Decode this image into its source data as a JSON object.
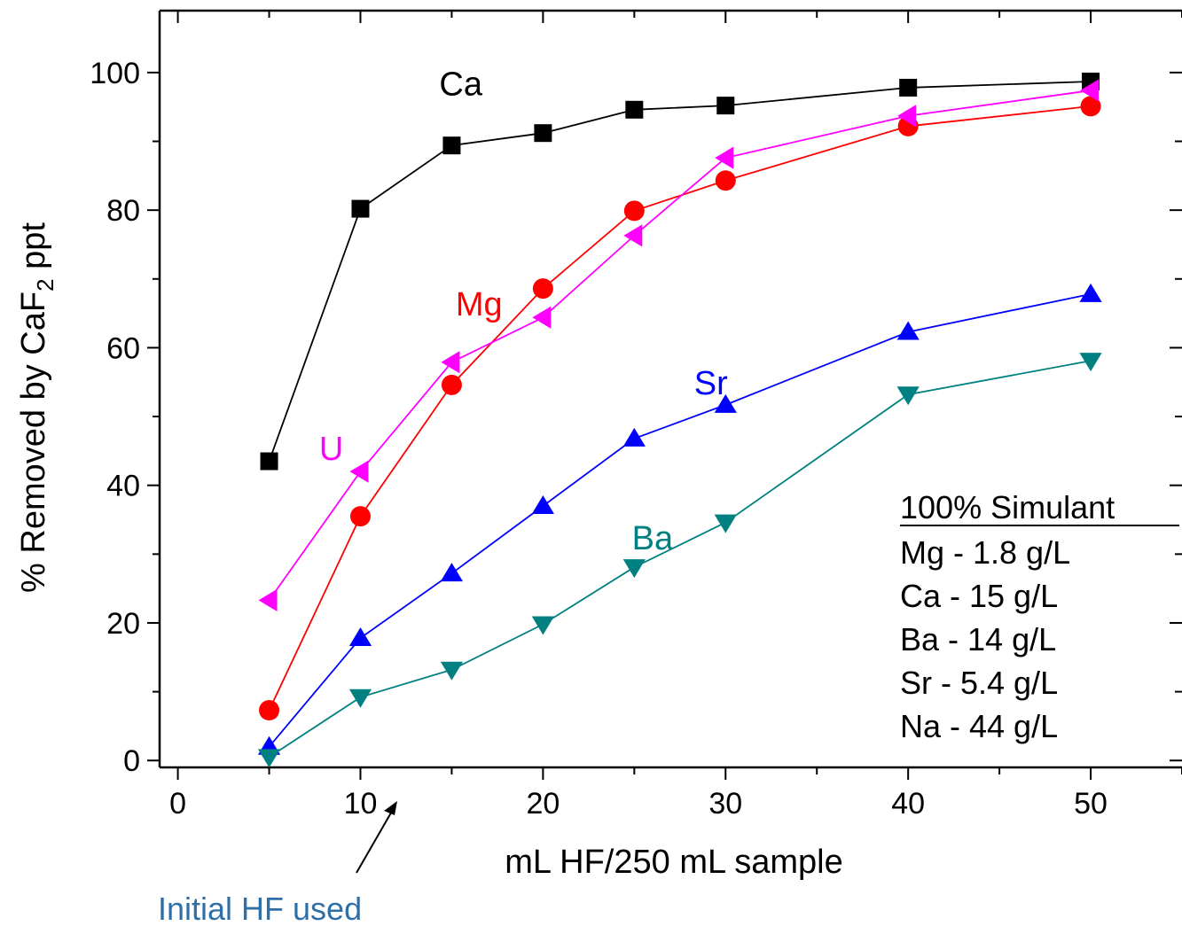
{
  "chart_data": {
    "type": "line",
    "ylabel_main": "% Removed by CaF",
    "ylabel_sub": "2",
    "ylabel_tail": " ppt",
    "xlabel": "mL HF/250 mL sample",
    "xlim": [
      -1,
      55
    ],
    "ylim": [
      -1,
      109
    ],
    "x_ticks": [
      0,
      10,
      20,
      30,
      40,
      50
    ],
    "y_ticks": [
      0,
      20,
      40,
      60,
      80,
      100
    ],
    "series": [
      {
        "label": "Ca",
        "color": "#000000",
        "marker": "square",
        "x": [
          5,
          10,
          15,
          20,
          25,
          30,
          40,
          50
        ],
        "y": [
          43.5,
          80.2,
          89.4,
          91.2,
          94.6,
          95.2,
          97.8,
          98.7
        ],
        "label_pos": [
          15.5,
          98.5
        ]
      },
      {
        "label": "Mg",
        "color": "#ff0000",
        "marker": "circle",
        "x": [
          5,
          10,
          15,
          20,
          25,
          30,
          40,
          50
        ],
        "y": [
          7.3,
          35.5,
          54.6,
          68.6,
          79.9,
          84.3,
          92.2,
          95.1
        ],
        "label_pos": [
          16.5,
          66.5
        ]
      },
      {
        "label": "U",
        "color": "#ff00ff",
        "marker": "tri-left",
        "x": [
          5,
          10,
          15,
          20,
          25,
          30,
          40,
          50
        ],
        "y": [
          23.3,
          42.0,
          57.9,
          64.4,
          76.3,
          87.6,
          93.7,
          97.4
        ],
        "label_pos": [
          8.4,
          45.5
        ]
      },
      {
        "label": "Sr",
        "color": "#0000ff",
        "marker": "tri-up",
        "x": [
          5,
          10,
          15,
          20,
          25,
          30,
          40,
          50
        ],
        "y": [
          2.0,
          17.8,
          27.2,
          37.0,
          46.8,
          51.7,
          62.3,
          67.8
        ],
        "label_pos": [
          29.2,
          55.0
        ]
      },
      {
        "label": "Ba",
        "color": "#008080",
        "marker": "tri-down",
        "x": [
          5,
          10,
          15,
          20,
          25,
          30,
          40,
          50
        ],
        "y": [
          0.5,
          9.2,
          13.2,
          19.8,
          28.1,
          34.6,
          53.2,
          58.1
        ],
        "label_pos": [
          26.0,
          32.5
        ]
      }
    ],
    "legend": {
      "title": "100% Simulant",
      "entries": [
        "Mg - 1.8 g/L",
        "Ca - 15 g/L",
        "Ba - 14 g/L",
        "Sr - 5.4 g/L",
        "Na - 44 g/L"
      ],
      "placement": "bottom-right"
    },
    "annotation": {
      "text": "Initial HF used",
      "color": "#2f6fa8",
      "points_to_x": 12
    }
  }
}
